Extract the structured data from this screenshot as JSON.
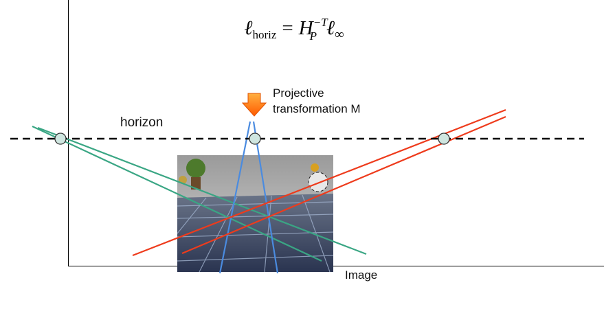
{
  "formula": {
    "lhs": "ℓ",
    "lhs_sub": "horiz",
    "equals": "=",
    "matrix": "H",
    "matrix_sub": "P",
    "matrix_sup": "−T",
    "rhs": "ℓ",
    "rhs_sub": "∞"
  },
  "arrow_label": {
    "line1": "Projective",
    "line2": "transformation M"
  },
  "horizon_label": "horizon",
  "image_label": "Image"
}
